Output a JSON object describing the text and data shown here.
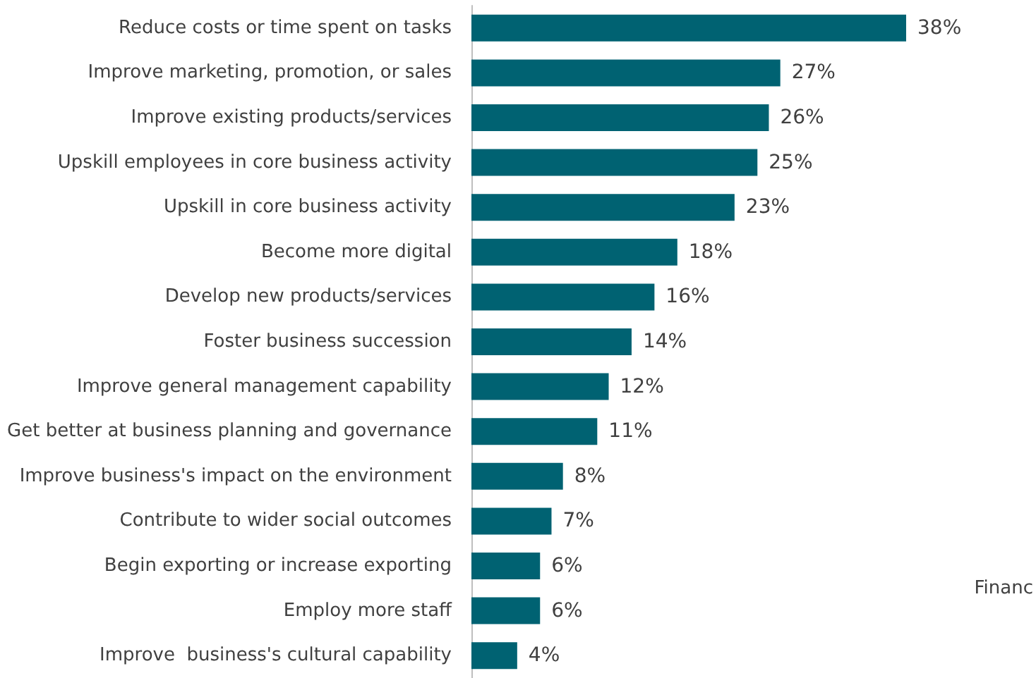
{
  "chart_data": {
    "type": "bar",
    "orientation": "horizontal",
    "categories": [
      "Reduce costs or time spent on tasks",
      "Improve marketing, promotion, or sales",
      "Improve existing products/services",
      "Upskill employees in core business activity",
      "Upskill in core business activity",
      "Become more digital",
      "Develop new products/services",
      "Foster business succession",
      "Improve general management capability",
      "Get better at business planning and governance",
      "Improve business's impact on the environment",
      "Contribute to wider social outcomes",
      "Begin exporting or increase exporting",
      "Employ more staff",
      "Improve  business's cultural capability"
    ],
    "values": [
      38,
      27,
      26,
      25,
      23,
      18,
      16,
      14,
      12,
      11,
      8,
      7,
      6,
      6,
      4
    ],
    "value_labels": [
      "38%",
      "27%",
      "26%",
      "25%",
      "23%",
      "18%",
      "16%",
      "14%",
      "12%",
      "11%",
      "8%",
      "7%",
      "6%",
      "6%",
      "4%"
    ],
    "color": "#006272",
    "annotations": [
      "Financ"
    ]
  }
}
